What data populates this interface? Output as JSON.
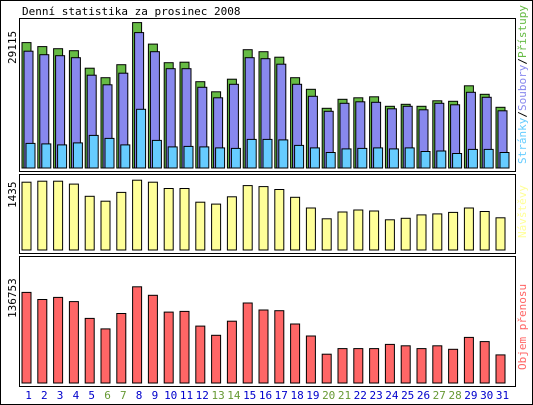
{
  "title": "Denní statistika za prosinec 2008",
  "colors": {
    "pristupy": "#66bb44",
    "soubory": "#8888ee",
    "stranky": "#66ccff",
    "navstevy": "#ffff99",
    "objem": "#ff6666",
    "weekday": "#0000cc",
    "weekend": "#669933"
  },
  "legend": {
    "stranky": "Stránky",
    "soubory": "Soubory",
    "pristupy": "Přístupy",
    "navstevy": "Návštěvy",
    "objem": "Objem přenosu"
  },
  "chart_data": [
    {
      "type": "bar",
      "panel": "hits",
      "max_label": "29115",
      "ylim": [
        0,
        29115
      ],
      "categories": [
        "1",
        "2",
        "3",
        "4",
        "5",
        "6",
        "7",
        "8",
        "9",
        "10",
        "11",
        "12",
        "13",
        "14",
        "15",
        "16",
        "17",
        "18",
        "19",
        "20",
        "21",
        "22",
        "23",
        "24",
        "25",
        "26",
        "27",
        "28",
        "29",
        "30",
        "31"
      ],
      "weekend_days": [
        "6",
        "7",
        "13",
        "14",
        "20",
        "21",
        "27",
        "28"
      ],
      "series": [
        {
          "name": "Přístupy",
          "values": [
            25000,
            24200,
            23800,
            23400,
            19900,
            18000,
            20600,
            29000,
            24700,
            21000,
            21100,
            17200,
            15200,
            17700,
            23600,
            23200,
            22100,
            18000,
            15700,
            11900,
            13700,
            14000,
            14200,
            12300,
            12700,
            12300,
            13400,
            13300,
            16400,
            14700,
            12100
          ]
        },
        {
          "name": "Soubory",
          "values": [
            23300,
            22600,
            22400,
            22000,
            18500,
            16600,
            18900,
            27000,
            23200,
            19800,
            19800,
            16100,
            14000,
            16700,
            22000,
            21800,
            20700,
            16700,
            14300,
            11300,
            12900,
            13200,
            13100,
            11800,
            12300,
            11600,
            12900,
            12600,
            15100,
            14100,
            11400
          ]
        },
        {
          "name": "Stránky",
          "values": [
            4900,
            4800,
            4600,
            5000,
            6500,
            5900,
            4600,
            11700,
            5500,
            4200,
            4300,
            4200,
            4000,
            3900,
            5700,
            5700,
            5600,
            4500,
            4000,
            3100,
            3800,
            3900,
            4000,
            3800,
            4000,
            3300,
            3400,
            2900,
            3700,
            3700,
            3100
          ]
        }
      ]
    },
    {
      "type": "bar",
      "panel": "visits",
      "max_label": "1435",
      "ylim": [
        0,
        1435
      ],
      "series": [
        {
          "name": "Návštěvy",
          "values": [
            1390,
            1410,
            1410,
            1350,
            1100,
            1000,
            1180,
            1430,
            1390,
            1260,
            1260,
            980,
            940,
            1090,
            1320,
            1300,
            1240,
            1080,
            860,
            640,
            780,
            820,
            800,
            620,
            650,
            720,
            740,
            770,
            860,
            790,
            660
          ]
        }
      ]
    },
    {
      "type": "bar",
      "panel": "kbytes",
      "max_label": "136753",
      "ylim": [
        0,
        136753
      ],
      "series": [
        {
          "name": "Objem přenosu",
          "values": [
            129000,
            119000,
            122000,
            116000,
            92000,
            77000,
            99000,
            137000,
            125000,
            101000,
            102000,
            81000,
            68000,
            88000,
            114000,
            104000,
            103000,
            84000,
            67000,
            41000,
            49000,
            49000,
            49000,
            55000,
            53000,
            49000,
            53000,
            48000,
            65000,
            59000,
            40000
          ]
        }
      ]
    }
  ]
}
